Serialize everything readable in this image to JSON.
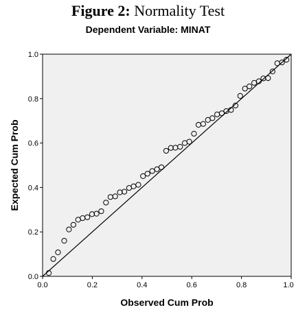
{
  "figure": {
    "label": "Figure 2:",
    "title": "Normality Test"
  },
  "chart_data": {
    "type": "scatter",
    "title": "Dependent Variable: MINAT",
    "xlabel": "Observed Cum Prob",
    "ylabel": "Expected Cum Prob",
    "xlim": [
      0,
      1
    ],
    "ylim": [
      0,
      1
    ],
    "x_ticks": [
      "0.0",
      "0.2",
      "0.4",
      "0.6",
      "0.8",
      "1.0"
    ],
    "y_ticks": [
      "0.0",
      "0.2",
      "0.4",
      "0.6",
      "0.8",
      "1.0"
    ],
    "reference_line": [
      [
        0,
        0
      ],
      [
        1,
        1
      ]
    ],
    "grid": false,
    "legend": "none",
    "colors": {
      "background": "#f0f0f0",
      "points": "#000000",
      "line": "#000000"
    },
    "points": {
      "x": [
        0.025,
        0.043,
        0.062,
        0.087,
        0.106,
        0.124,
        0.143,
        0.161,
        0.18,
        0.199,
        0.217,
        0.236,
        0.255,
        0.273,
        0.292,
        0.311,
        0.329,
        0.348,
        0.366,
        0.385,
        0.404,
        0.422,
        0.441,
        0.46,
        0.478,
        0.497,
        0.516,
        0.534,
        0.553,
        0.572,
        0.59,
        0.609,
        0.627,
        0.646,
        0.665,
        0.683,
        0.702,
        0.721,
        0.739,
        0.758,
        0.776,
        0.795,
        0.814,
        0.832,
        0.851,
        0.87,
        0.888,
        0.907,
        0.925,
        0.944,
        0.963,
        0.981
      ],
      "y": [
        0.015,
        0.078,
        0.108,
        0.16,
        0.211,
        0.232,
        0.255,
        0.262,
        0.266,
        0.28,
        0.282,
        0.293,
        0.332,
        0.357,
        0.36,
        0.378,
        0.381,
        0.398,
        0.405,
        0.412,
        0.451,
        0.462,
        0.474,
        0.482,
        0.491,
        0.565,
        0.578,
        0.579,
        0.583,
        0.6,
        0.606,
        0.642,
        0.682,
        0.686,
        0.704,
        0.712,
        0.729,
        0.734,
        0.744,
        0.749,
        0.769,
        0.812,
        0.845,
        0.855,
        0.871,
        0.878,
        0.891,
        0.892,
        0.922,
        0.959,
        0.963,
        0.975
      ]
    }
  }
}
